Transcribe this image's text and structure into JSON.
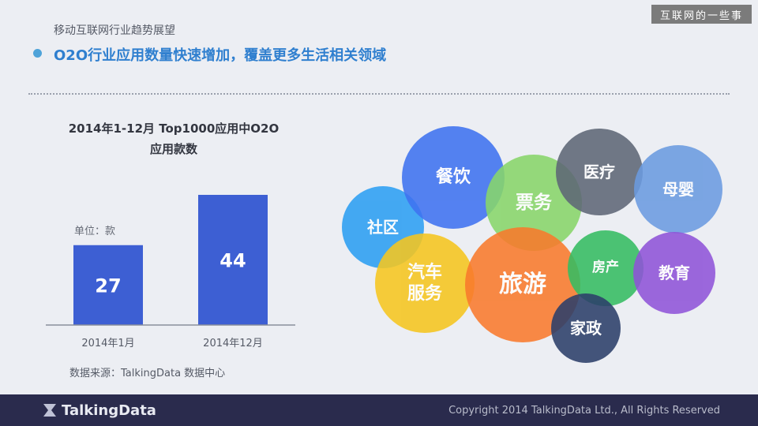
{
  "header": {
    "corner_tag": "互联网的一些事",
    "section_title": "移动互联网行业趋势展望",
    "headline": "O2O行业应用数量快速增加，覆盖更多生活相关领域"
  },
  "chart_data": {
    "type": "bar",
    "title_line1": "2014年1-12月 Top1000应用中O2O",
    "title_line2": "应用款数",
    "unit": "单位：款",
    "categories": [
      "2014年1月",
      "2014年12月"
    ],
    "values": [
      27,
      44
    ],
    "ylim": [
      0,
      44
    ],
    "bar_color": "#3d5fd3",
    "grid": false
  },
  "source_note": "数据来源：TalkingData 数据中心",
  "bubbles": [
    {
      "label": "社区",
      "color": "#2c9ff2"
    },
    {
      "label": "餐饮",
      "color": "#3f72f0"
    },
    {
      "label": "票务",
      "color": "#88d66a"
    },
    {
      "label": "医疗",
      "color": "#5e6776"
    },
    {
      "label": "母婴",
      "color": "#6b9be0"
    },
    {
      "label": "汽车\n服务",
      "color": "#f6c61f"
    },
    {
      "label": "旅游",
      "color": "#f97a2c"
    },
    {
      "label": "房产",
      "color": "#35bd62"
    },
    {
      "label": "教育",
      "color": "#8f54d8"
    },
    {
      "label": "家政",
      "color": "#2c3f6a"
    }
  ],
  "footer": {
    "logo_text": "TalkingData",
    "copyright": "Copyright 2014 TalkingData Ltd., All Rights Reserved"
  }
}
